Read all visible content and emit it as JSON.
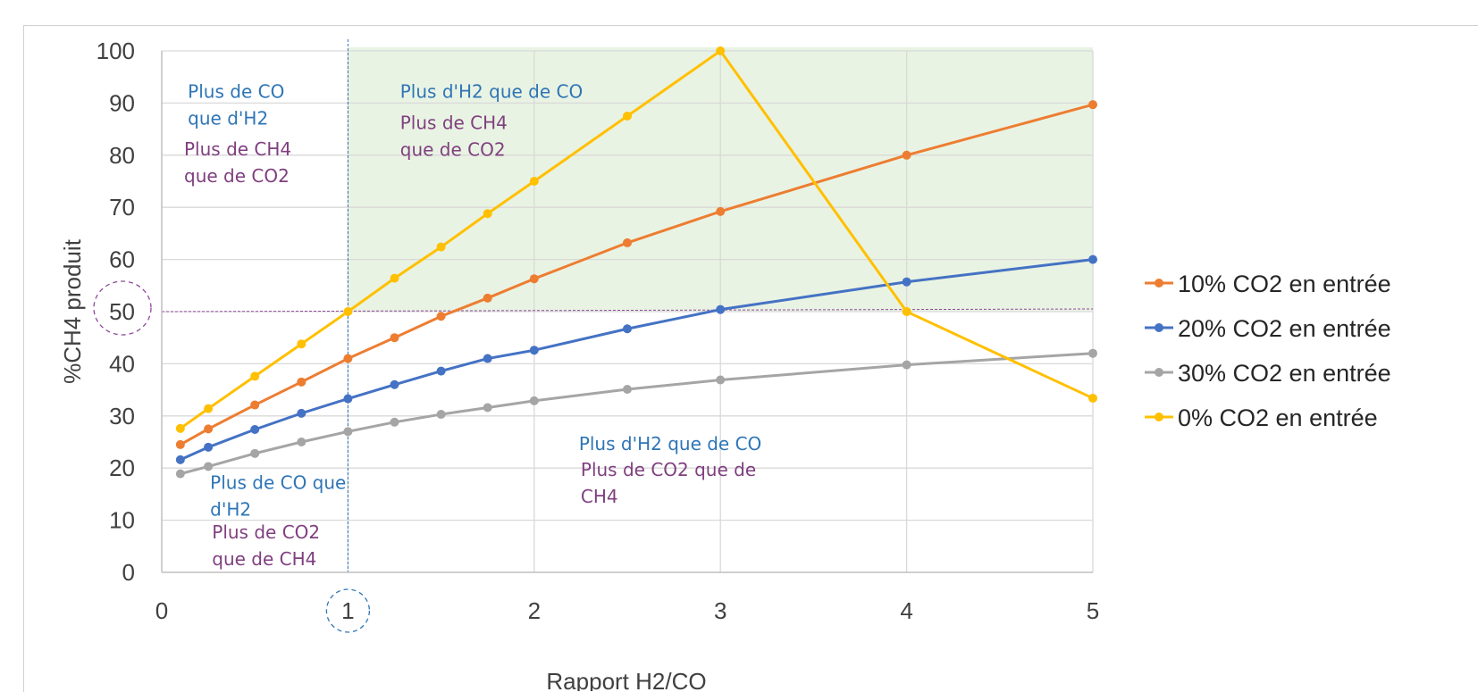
{
  "chart_data": {
    "type": "line",
    "title": "",
    "xlabel": "Rapport H2/CO",
    "ylabel": "%CH4 produit",
    "xlim": [
      0,
      5
    ],
    "ylim": [
      0,
      100
    ],
    "x_ticks": [
      "0",
      "1",
      "2",
      "3",
      "4",
      "5"
    ],
    "y_ticks": [
      "0",
      "10",
      "20",
      "30",
      "40",
      "50",
      "60",
      "70",
      "80",
      "90",
      "100"
    ],
    "grid": true,
    "legend_position": "right",
    "series": [
      {
        "name": "10% CO2 en entrée",
        "color": "#ED7D31",
        "x": [
          0.1,
          0.25,
          0.5,
          0.75,
          1,
          1.25,
          1.5,
          1.75,
          2,
          2.5,
          3,
          4,
          5
        ],
        "y": [
          24.5,
          27.5,
          32.1,
          36.5,
          41,
          45,
          49.1,
          52.6,
          56.3,
          63.2,
          69.2,
          80,
          89.7
        ]
      },
      {
        "name": "20% CO2 en entrée",
        "color": "#4472C4",
        "x": [
          0.1,
          0.25,
          0.5,
          0.75,
          1,
          1.25,
          1.5,
          1.75,
          2,
          2.5,
          3,
          4,
          5
        ],
        "y": [
          21.6,
          24,
          27.4,
          30.5,
          33.3,
          36,
          38.6,
          41,
          42.6,
          46.7,
          50.4,
          55.7,
          60
        ]
      },
      {
        "name": "30% CO2 en entrée",
        "color": "#A5A5A5",
        "x": [
          0.1,
          0.25,
          0.5,
          0.75,
          1,
          1.25,
          1.5,
          1.75,
          2,
          2.5,
          3,
          4,
          5
        ],
        "y": [
          18.9,
          20.3,
          22.8,
          25,
          27,
          28.8,
          30.3,
          31.6,
          32.9,
          35.1,
          36.9,
          39.8,
          42
        ]
      },
      {
        "name": "0% CO2 en entrée",
        "color": "#FFC000",
        "x": [
          0.1,
          0.25,
          0.5,
          0.75,
          1,
          1.25,
          1.5,
          1.75,
          2,
          2.5,
          3,
          4,
          5
        ],
        "y": [
          27.6,
          31.4,
          37.6,
          43.8,
          50,
          56.4,
          62.4,
          68.8,
          75,
          87.5,
          100,
          50,
          33.4
        ]
      }
    ],
    "annotations": [
      {
        "lines": [
          "Plus de CO",
          "que d'H2"
        ],
        "color": "#2E75B6",
        "x": 0.14,
        "y": 91
      },
      {
        "lines": [
          "Plus de CH4",
          "que de CO2"
        ],
        "color": "#7F3F7F",
        "x": 0.12,
        "y": 80
      },
      {
        "lines": [
          "Plus d'H2 que de CO"
        ],
        "color": "#2E75B6",
        "x": 1.28,
        "y": 91
      },
      {
        "lines": [
          "Plus de CH4",
          "que de CO2"
        ],
        "color": "#7F3F7F",
        "x": 1.28,
        "y": 85
      },
      {
        "lines": [
          "Plus de CO que",
          "d'H2"
        ],
        "color": "#2E75B6",
        "x": 0.26,
        "y": 16
      },
      {
        "lines": [
          "Plus de CO2",
          "que de CH4"
        ],
        "color": "#7F3F7F",
        "x": 0.27,
        "y": 6.5
      },
      {
        "lines": [
          "Plus d'H2 que de CO"
        ],
        "color": "#2E75B6",
        "x": 2.24,
        "y": 23.5
      },
      {
        "lines": [
          "Plus de CO2 que de",
          "CH4"
        ],
        "color": "#7F3F7F",
        "x": 2.25,
        "y": 18.5
      }
    ],
    "reference_lines": {
      "y": 50,
      "x": 1
    },
    "highlight_region": {
      "x": [
        1,
        5
      ],
      "y": [
        50,
        100
      ],
      "color": "#E2EFDA"
    }
  }
}
